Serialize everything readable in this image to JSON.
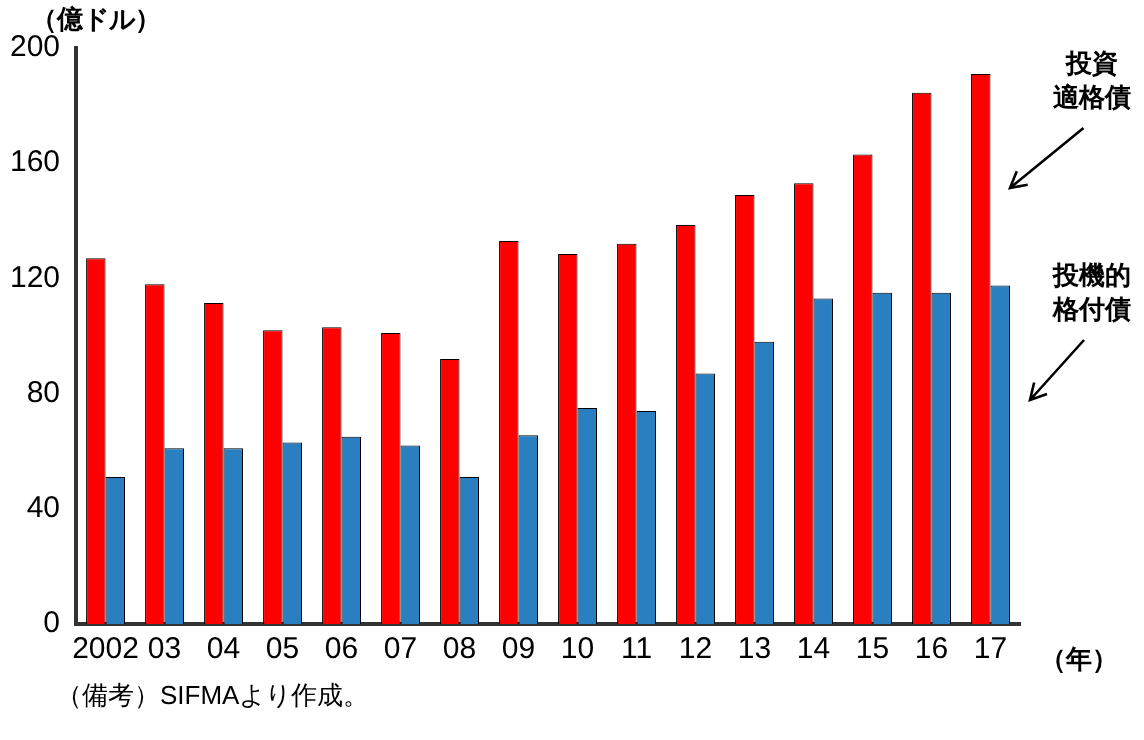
{
  "chart_data": {
    "type": "bar",
    "ylabel": "（億ドル）",
    "xlabel": "（年）",
    "categories": [
      "2002",
      "03",
      "04",
      "05",
      "06",
      "07",
      "08",
      "09",
      "10",
      "11",
      "12",
      "13",
      "14",
      "15",
      "16",
      "17"
    ],
    "series": [
      {
        "name": "投資適格債",
        "color": "#ff0000",
        "values": [
          127,
          118,
          111.5,
          102,
          103,
          101,
          92,
          133,
          128.5,
          132,
          138.5,
          149,
          153,
          163,
          184.5,
          191
        ]
      },
      {
        "name": "投機的格付債",
        "color": "#2a7fc0",
        "values": [
          51,
          61,
          61,
          63,
          65,
          62,
          51,
          65.5,
          75,
          74,
          87,
          98,
          113,
          115,
          115,
          117.5
        ]
      }
    ],
    "ylim": [
      0,
      200
    ],
    "yticks": [
      0,
      40,
      80,
      120,
      160,
      200
    ],
    "grid": false,
    "legend": false,
    "annotations": [
      "（備考）SIFMAより作成。"
    ]
  }
}
